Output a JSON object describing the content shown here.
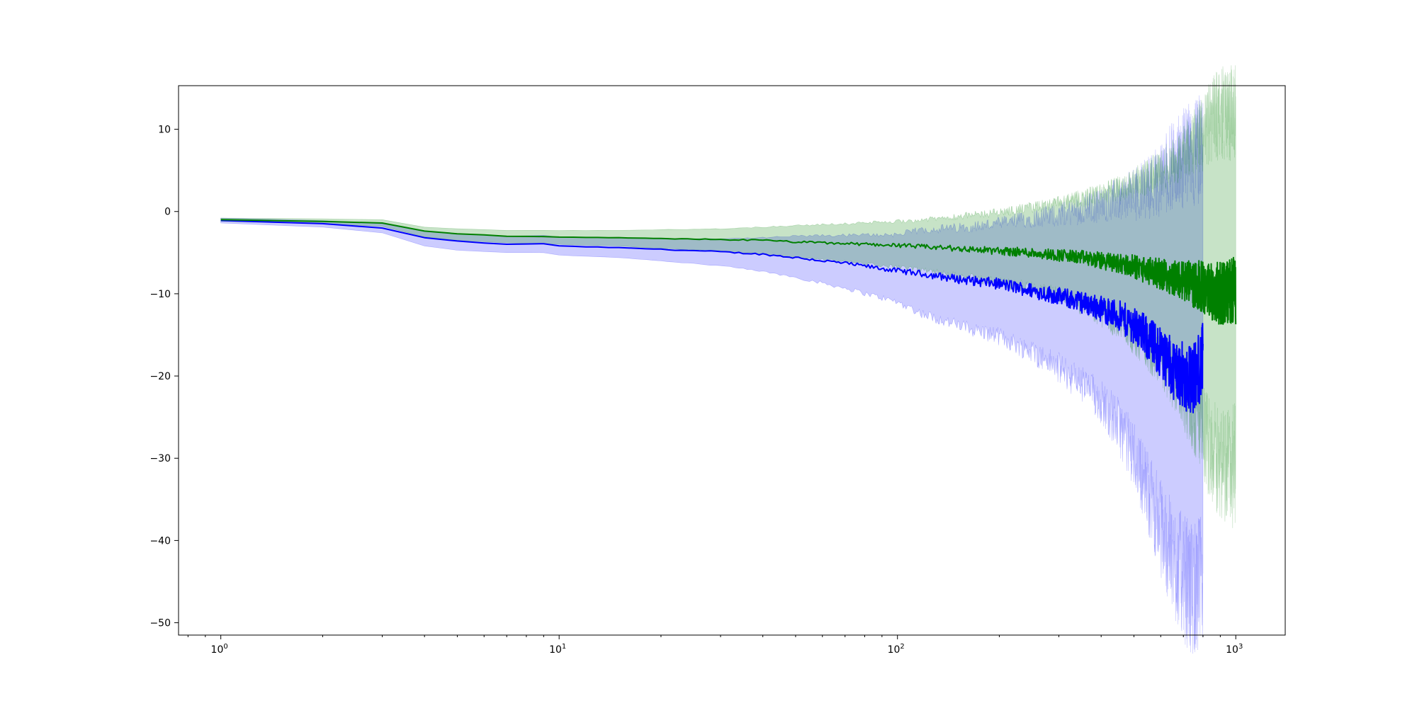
{
  "chart_data": {
    "type": "line",
    "title": "",
    "xlabel": "",
    "ylabel": "",
    "x_scale": "log",
    "xlim": [
      0.75,
      1400
    ],
    "ylim": [
      -51.5,
      15.3
    ],
    "grid": false,
    "legend": "none",
    "x_ticks": [
      {
        "value": 1,
        "base": "10",
        "exp": "0"
      },
      {
        "value": 10,
        "base": "10",
        "exp": "1"
      },
      {
        "value": 100,
        "base": "10",
        "exp": "2"
      },
      {
        "value": 1000,
        "base": "10",
        "exp": "3"
      }
    ],
    "y_ticks": [
      {
        "value": 10,
        "label": "10"
      },
      {
        "value": 0,
        "label": "0"
      },
      {
        "value": -10,
        "label": "−10"
      },
      {
        "value": -20,
        "label": "−20"
      },
      {
        "value": -30,
        "label": "−30"
      },
      {
        "value": -40,
        "label": "−40"
      },
      {
        "value": -50,
        "label": "−50"
      }
    ],
    "series": [
      {
        "color": "#0000ff",
        "band_color": "#0000ff",
        "band_opacity": 0.2,
        "points": [
          {
            "x": 1,
            "y": -1.1,
            "lo": -1.4,
            "hi": -0.8
          },
          {
            "x": 2,
            "y": -1.5,
            "lo": -1.9,
            "hi": -1.1
          },
          {
            "x": 3,
            "y": -2.0,
            "lo": -2.6,
            "hi": -1.5
          },
          {
            "x": 4,
            "y": -3.2,
            "lo": -4.2,
            "hi": -2.4
          },
          {
            "x": 5,
            "y": -3.6,
            "lo": -4.7,
            "hi": -2.7
          },
          {
            "x": 7,
            "y": -4.0,
            "lo": -5.0,
            "hi": -3.0
          },
          {
            "x": 9,
            "y": -3.9,
            "lo": -5.0,
            "hi": -2.9
          },
          {
            "x": 10,
            "y": -4.2,
            "lo": -5.3,
            "hi": -3.1
          },
          {
            "x": 15,
            "y": -4.4,
            "lo": -5.6,
            "hi": -3.2
          },
          {
            "x": 20,
            "y": -4.6,
            "lo": -6.0,
            "hi": -3.3
          },
          {
            "x": 30,
            "y": -4.9,
            "lo": -6.6,
            "hi": -3.3
          },
          {
            "x": 40,
            "y": -5.2,
            "lo": -7.3,
            "hi": -3.2
          },
          {
            "x": 50,
            "y": -5.6,
            "lo": -8.0,
            "hi": -3.0
          },
          {
            "x": 70,
            "y": -6.3,
            "lo": -9.3,
            "hi": -2.9
          },
          {
            "x": 100,
            "y": -7.2,
            "lo": -11.0,
            "hi": -2.8
          },
          {
            "x": 120,
            "y": -7.6,
            "lo": -12.5,
            "hi": -2.2
          },
          {
            "x": 150,
            "y": -8.2,
            "lo": -13.8,
            "hi": -2.0
          },
          {
            "x": 200,
            "y": -8.8,
            "lo": -15.2,
            "hi": -1.5
          },
          {
            "x": 250,
            "y": -9.6,
            "lo": -17.0,
            "hi": -0.8
          },
          {
            "x": 300,
            "y": -10.3,
            "lo": -19.0,
            "hi": -0.4
          },
          {
            "x": 350,
            "y": -11.0,
            "lo": -21.0,
            "hi": 0.2
          },
          {
            "x": 400,
            "y": -11.8,
            "lo": -23.0,
            "hi": 0.8
          },
          {
            "x": 450,
            "y": -12.7,
            "lo": -26.0,
            "hi": 1.5
          },
          {
            "x": 500,
            "y": -13.8,
            "lo": -29.5,
            "hi": 2.0
          },
          {
            "x": 550,
            "y": -15.5,
            "lo": -34.0,
            "hi": 3.0
          },
          {
            "x": 600,
            "y": -17.0,
            "lo": -38.5,
            "hi": 4.0
          },
          {
            "x": 650,
            "y": -19.0,
            "lo": -42.0,
            "hi": 5.5
          },
          {
            "x": 700,
            "y": -20.0,
            "lo": -44.5,
            "hi": 6.5
          },
          {
            "x": 750,
            "y": -20.5,
            "lo": -46.0,
            "hi": 7.0
          },
          {
            "x": 800,
            "y": -18.0,
            "lo": -45.0,
            "hi": 8.0
          }
        ]
      },
      {
        "color": "#008000",
        "band_color": "#008000",
        "band_opacity": 0.22,
        "points": [
          {
            "x": 1,
            "y": -1.0,
            "lo": -1.2,
            "hi": -0.8
          },
          {
            "x": 2,
            "y": -1.2,
            "lo": -1.5,
            "hi": -0.9
          },
          {
            "x": 3,
            "y": -1.4,
            "lo": -1.8,
            "hi": -1.0
          },
          {
            "x": 4,
            "y": -2.4,
            "lo": -3.1,
            "hi": -1.9
          },
          {
            "x": 5,
            "y": -2.7,
            "lo": -3.5,
            "hi": -2.1
          },
          {
            "x": 7,
            "y": -3.0,
            "lo": -3.8,
            "hi": -2.3
          },
          {
            "x": 10,
            "y": -3.1,
            "lo": -4.0,
            "hi": -2.3
          },
          {
            "x": 15,
            "y": -3.2,
            "lo": -4.2,
            "hi": -2.3
          },
          {
            "x": 20,
            "y": -3.3,
            "lo": -4.5,
            "hi": -2.2
          },
          {
            "x": 30,
            "y": -3.4,
            "lo": -4.8,
            "hi": -2.1
          },
          {
            "x": 40,
            "y": -3.5,
            "lo": -5.2,
            "hi": -1.9
          },
          {
            "x": 50,
            "y": -3.7,
            "lo": -5.6,
            "hi": -1.7
          },
          {
            "x": 70,
            "y": -3.9,
            "lo": -6.1,
            "hi": -1.5
          },
          {
            "x": 100,
            "y": -4.1,
            "lo": -6.8,
            "hi": -1.2
          },
          {
            "x": 120,
            "y": -4.3,
            "lo": -7.2,
            "hi": -1.0
          },
          {
            "x": 150,
            "y": -4.5,
            "lo": -7.8,
            "hi": -0.6
          },
          {
            "x": 200,
            "y": -4.8,
            "lo": -8.6,
            "hi": -0.1
          },
          {
            "x": 250,
            "y": -5.0,
            "lo": -9.4,
            "hi": 0.5
          },
          {
            "x": 300,
            "y": -5.3,
            "lo": -10.2,
            "hi": 1.0
          },
          {
            "x": 350,
            "y": -5.6,
            "lo": -11.2,
            "hi": 1.6
          },
          {
            "x": 400,
            "y": -6.0,
            "lo": -12.4,
            "hi": 2.2
          },
          {
            "x": 450,
            "y": -6.3,
            "lo": -13.6,
            "hi": 2.8
          },
          {
            "x": 500,
            "y": -6.7,
            "lo": -15.0,
            "hi": 3.5
          },
          {
            "x": 550,
            "y": -7.2,
            "lo": -16.6,
            "hi": 4.2
          },
          {
            "x": 600,
            "y": -7.6,
            "lo": -18.2,
            "hi": 5.0
          },
          {
            "x": 650,
            "y": -8.0,
            "lo": -20.0,
            "hi": 6.0
          },
          {
            "x": 700,
            "y": -8.4,
            "lo": -22.0,
            "hi": 7.0
          },
          {
            "x": 750,
            "y": -8.8,
            "lo": -24.5,
            "hi": 8.5
          },
          {
            "x": 800,
            "y": -9.2,
            "lo": -27.0,
            "hi": 9.5
          },
          {
            "x": 850,
            "y": -9.6,
            "lo": -29.0,
            "hi": 11.0
          },
          {
            "x": 900,
            "y": -10.0,
            "lo": -30.5,
            "hi": 12.0
          },
          {
            "x": 1000,
            "y": -9.6,
            "lo": -31.0,
            "hi": 12.0
          }
        ]
      }
    ]
  }
}
